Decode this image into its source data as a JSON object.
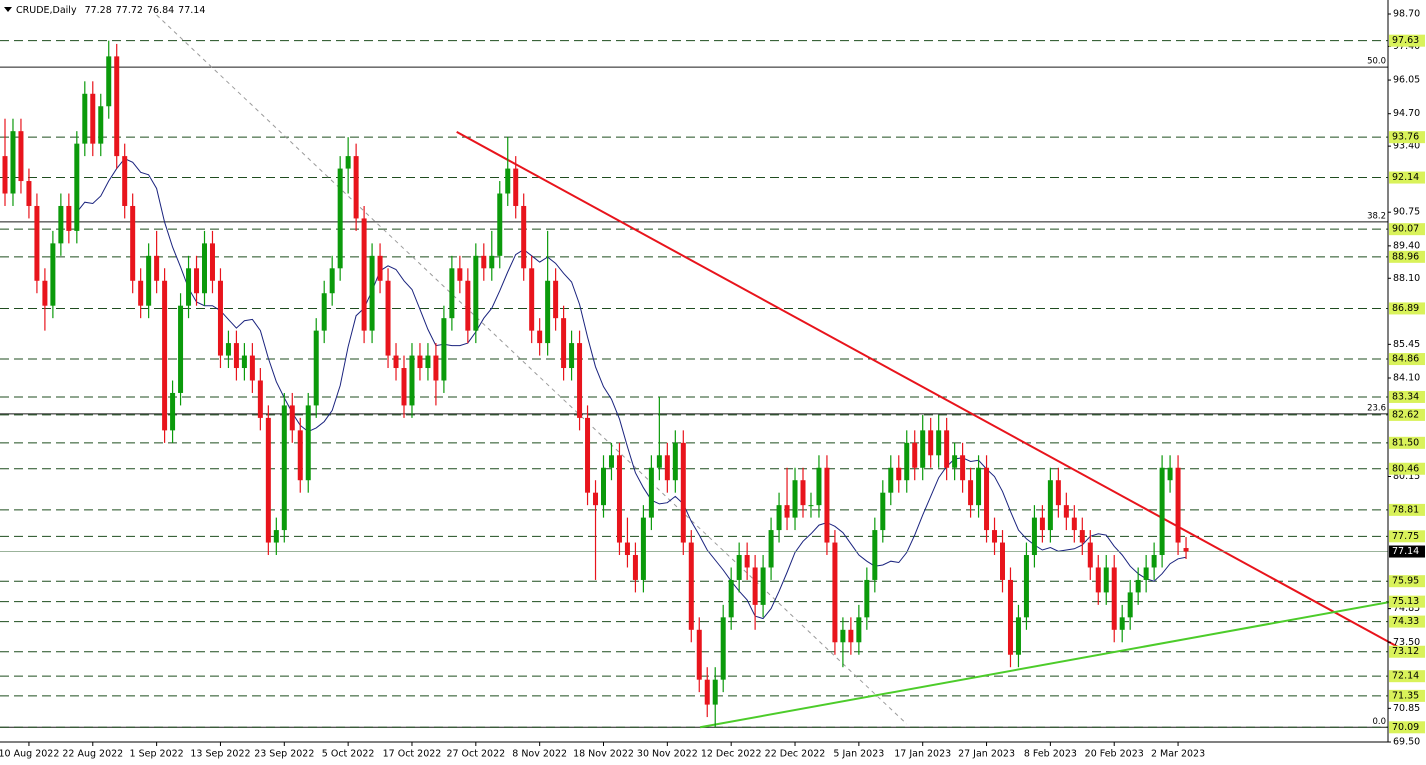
{
  "chart_data": {
    "type": "candlestick",
    "symbol": "CRUDE,Daily",
    "up_color": "#0b9a0b",
    "down_color": "#e8141c",
    "ylim": [
      69.5,
      98.7
    ],
    "yticks": [
      {
        "value": 98.7,
        "label": "98.70"
      },
      {
        "value": 97.4,
        "label": "97.40"
      },
      96.05,
      {
        "value": 94.7,
        "label": "94.70"
      },
      {
        "value": 93.4,
        "label": "93.40"
      },
      90.75,
      {
        "value": 89.4,
        "label": "89.40"
      },
      {
        "value": 88.1,
        "label": "88.10"
      },
      85.45,
      {
        "value": 84.1,
        "label": "84.10"
      },
      80.15,
      74.85,
      {
        "value": 73.5,
        "label": "73.50"
      },
      70.85,
      {
        "value": 69.5,
        "label": "69.50"
      }
    ],
    "xticks": [
      {
        "value": 3,
        "label": "10 Aug 2022"
      },
      {
        "value": 11,
        "label": "22 Aug 2022"
      },
      {
        "value": 19,
        "label": "1 Sep 2022"
      },
      {
        "value": 27,
        "label": "13 Sep 2022"
      },
      {
        "value": 35,
        "label": "23 Sep 2022"
      },
      {
        "value": 43,
        "label": "5 Oct 2022"
      },
      {
        "value": 51,
        "label": "17 Oct 2022"
      },
      {
        "value": 59,
        "label": "27 Oct 2022"
      },
      {
        "value": 67,
        "label": "8 Nov 2022"
      },
      {
        "value": 75,
        "label": "18 Nov 2022"
      },
      {
        "value": 83,
        "label": "30 Nov 2022"
      },
      {
        "value": 91,
        "label": "12 Dec 2022"
      },
      {
        "value": 99,
        "label": "22 Dec 2022"
      },
      {
        "value": 107,
        "label": "5 Jan 2023"
      },
      {
        "value": 115,
        "label": "17 Jan 2023"
      },
      {
        "value": 123,
        "label": "27 Jan 2023"
      },
      {
        "value": 131,
        "label": "8 Feb 2023"
      },
      {
        "value": 139,
        "label": "20 Feb 2023"
      },
      {
        "value": 147,
        "label": "2 Mar 2023"
      }
    ],
    "levels": [
      97.63,
      93.76,
      92.14,
      90.07,
      88.96,
      86.89,
      84.86,
      83.34,
      82.62,
      {
        "value": 81.5,
        "label": "81.50"
      },
      80.46,
      78.81,
      77.75,
      75.95,
      75.13,
      74.33,
      73.12,
      72.14,
      71.35,
      70.09
    ],
    "fib_levels": [
      {
        "label": "50.0",
        "price": 96.57
      },
      {
        "label": "38.2",
        "price": 90.36
      },
      {
        "label": "23.6",
        "price": 82.66
      },
      {
        "label": "0.0",
        "price": 70.09
      }
    ],
    "ma_period": 10,
    "trendlines": [
      {
        "color": "#e8141c",
        "x": [
          56.6,
          174.8
        ],
        "y": [
          93.97,
          73.27
        ]
      },
      {
        "color": "#4ccc2a",
        "x": [
          87.1,
          174.8
        ],
        "y": [
          70.09,
          75.19
        ]
      },
      {
        "color": "#9a9a9a",
        "x": [
          19,
          113
        ],
        "y": [
          98.66,
          70.22
        ],
        "dashed": true
      }
    ],
    "ohlc": [
      [
        93.0,
        94.5,
        91.0,
        91.5
      ],
      [
        91.5,
        94.5,
        91.0,
        94.0
      ],
      [
        94.0,
        94.5,
        91.5,
        92.0
      ],
      [
        92.0,
        92.5,
        90.5,
        91.0
      ],
      [
        91.0,
        91.5,
        87.5,
        88.0
      ],
      [
        88.0,
        88.5,
        86.0,
        87.0
      ],
      [
        87.0,
        90.0,
        86.5,
        89.5
      ],
      [
        89.5,
        91.5,
        89.0,
        91.0
      ],
      [
        91.0,
        91.5,
        89.5,
        90.0
      ],
      [
        90.0,
        94.0,
        89.5,
        93.5
      ],
      [
        93.5,
        96.0,
        93.0,
        95.5
      ],
      [
        95.5,
        96.0,
        93.0,
        93.5
      ],
      [
        93.5,
        95.5,
        93.0,
        95.0
      ],
      [
        95.0,
        97.63,
        94.5,
        97.0
      ],
      [
        97.0,
        97.5,
        92.5,
        93.0
      ],
      [
        93.0,
        93.5,
        90.5,
        91.0
      ],
      [
        91.0,
        91.5,
        87.5,
        88.0
      ],
      [
        88.0,
        88.5,
        86.5,
        87.0
      ],
      [
        87.0,
        89.5,
        86.5,
        89.0
      ],
      [
        89.0,
        90.0,
        87.5,
        88.0
      ],
      [
        88.0,
        88.5,
        81.5,
        82.0
      ],
      [
        82.0,
        84.0,
        81.5,
        83.5
      ],
      [
        83.5,
        87.5,
        83.0,
        87.0
      ],
      [
        87.0,
        89.0,
        86.5,
        88.5
      ],
      [
        88.5,
        89.0,
        87.0,
        87.5
      ],
      [
        87.5,
        90.0,
        87.0,
        89.5
      ],
      [
        89.5,
        90.0,
        87.5,
        88.0
      ],
      [
        88.0,
        88.5,
        84.5,
        85.0
      ],
      [
        85.0,
        86.0,
        84.5,
        85.5
      ],
      [
        85.5,
        86.0,
        84.0,
        84.5
      ],
      [
        84.5,
        85.5,
        84.0,
        85.0
      ],
      [
        85.0,
        85.5,
        83.5,
        84.0
      ],
      [
        84.0,
        84.5,
        82.0,
        82.5
      ],
      [
        82.5,
        83.0,
        77.0,
        77.5
      ],
      [
        77.5,
        78.5,
        77.0,
        78.0
      ],
      [
        78.0,
        83.5,
        77.5,
        83.0
      ],
      [
        83.0,
        83.5,
        81.5,
        82.0
      ],
      [
        82.0,
        82.5,
        79.5,
        80.0
      ],
      [
        80.0,
        83.5,
        79.5,
        83.0
      ],
      [
        83.0,
        86.5,
        82.5,
        86.0
      ],
      [
        86.0,
        88.0,
        85.5,
        87.5
      ],
      [
        87.5,
        89.0,
        87.0,
        88.5
      ],
      [
        88.5,
        93.0,
        88.0,
        92.5
      ],
      [
        92.5,
        93.76,
        91.5,
        93.0
      ],
      [
        93.0,
        93.5,
        90.0,
        90.5
      ],
      [
        90.5,
        91.0,
        85.5,
        86.0
      ],
      [
        86.0,
        89.5,
        85.5,
        89.0
      ],
      [
        89.0,
        89.5,
        87.5,
        88.0
      ],
      [
        88.0,
        88.5,
        84.5,
        85.0
      ],
      [
        85.0,
        85.5,
        84.0,
        84.5
      ],
      [
        84.5,
        85.0,
        82.5,
        83.0
      ],
      [
        83.0,
        85.5,
        82.5,
        85.0
      ],
      [
        85.0,
        85.5,
        84.0,
        84.5
      ],
      [
        84.5,
        85.5,
        84.0,
        85.0
      ],
      [
        85.0,
        85.5,
        83.0,
        84.0
      ],
      [
        84.0,
        87.0,
        83.5,
        86.5
      ],
      [
        86.5,
        89.0,
        86.0,
        88.5
      ],
      [
        88.5,
        89.0,
        87.5,
        88.0
      ],
      [
        88.0,
        88.5,
        85.5,
        86.0
      ],
      [
        86.0,
        89.5,
        85.5,
        89.0
      ],
      [
        89.0,
        89.5,
        88.0,
        88.5
      ],
      [
        88.5,
        90.0,
        88.0,
        89.0
      ],
      [
        89.0,
        92.0,
        88.5,
        91.5
      ],
      [
        91.5,
        93.76,
        91.0,
        92.5
      ],
      [
        92.5,
        93.0,
        90.5,
        91.0
      ],
      [
        91.0,
        91.5,
        88.0,
        88.5
      ],
      [
        88.5,
        89.0,
        85.5,
        86.0
      ],
      [
        86.0,
        86.5,
        85.0,
        85.5
      ],
      [
        85.5,
        90.0,
        85.0,
        88.0
      ],
      [
        88.0,
        88.5,
        86.0,
        86.5
      ],
      [
        86.5,
        87.0,
        84.0,
        84.5
      ],
      [
        84.5,
        86.0,
        84.0,
        85.5
      ],
      [
        85.5,
        86.0,
        82.0,
        82.5
      ],
      [
        82.5,
        83.0,
        79.0,
        79.5
      ],
      [
        79.5,
        80.0,
        76.0,
        79.0
      ],
      [
        79.0,
        81.0,
        78.5,
        80.5
      ],
      [
        80.5,
        81.5,
        80.0,
        81.0
      ],
      [
        81.0,
        81.5,
        77.0,
        77.5
      ],
      [
        77.5,
        78.5,
        76.5,
        77.0
      ],
      [
        77.0,
        77.5,
        75.5,
        76.0
      ],
      [
        76.0,
        79.0,
        75.5,
        78.5
      ],
      [
        78.5,
        81.0,
        78.0,
        80.5
      ],
      [
        80.5,
        83.34,
        80.0,
        81.0
      ],
      [
        81.0,
        81.5,
        79.5,
        80.0
      ],
      [
        80.0,
        82.0,
        79.5,
        81.5
      ],
      [
        81.5,
        82.0,
        77.0,
        77.5
      ],
      [
        77.5,
        78.0,
        73.5,
        74.0
      ],
      [
        74.0,
        74.5,
        71.5,
        72.0
      ],
      [
        72.0,
        72.5,
        70.5,
        71.0
      ],
      [
        71.0,
        72.5,
        70.09,
        72.0
      ],
      [
        72.0,
        75.0,
        71.5,
        74.5
      ],
      [
        74.5,
        76.5,
        74.0,
        76.0
      ],
      [
        76.0,
        77.5,
        75.5,
        77.0
      ],
      [
        77.0,
        77.5,
        76.0,
        76.5
      ],
      [
        76.5,
        77.0,
        74.0,
        75.0
      ],
      [
        75.0,
        77.0,
        74.5,
        76.5
      ],
      [
        76.5,
        78.5,
        76.0,
        78.0
      ],
      [
        78.0,
        79.5,
        77.5,
        79.0
      ],
      [
        79.0,
        80.5,
        78.0,
        78.5
      ],
      [
        78.5,
        80.5,
        78.0,
        80.0
      ],
      [
        80.0,
        80.5,
        78.5,
        79.0
      ],
      [
        79.0,
        79.5,
        78.5,
        79.0
      ],
      [
        79.0,
        81.0,
        78.5,
        80.5
      ],
      [
        80.5,
        81.0,
        77.0,
        77.5
      ],
      [
        77.5,
        78.0,
        73.0,
        73.5
      ],
      [
        73.5,
        74.5,
        72.5,
        74.0
      ],
      [
        74.0,
        74.5,
        73.0,
        73.5
      ],
      [
        73.5,
        75.0,
        73.0,
        74.5
      ],
      [
        74.5,
        76.5,
        74.0,
        76.0
      ],
      [
        76.0,
        78.5,
        75.5,
        78.0
      ],
      [
        78.0,
        80.0,
        77.5,
        79.5
      ],
      [
        79.5,
        81.0,
        79.0,
        80.5
      ],
      [
        80.5,
        81.0,
        79.5,
        80.0
      ],
      [
        80.0,
        82.0,
        79.5,
        81.5
      ],
      [
        81.5,
        82.0,
        80.0,
        80.5
      ],
      [
        80.5,
        82.62,
        80.0,
        82.0
      ],
      [
        82.0,
        82.5,
        80.5,
        81.0
      ],
      [
        81.0,
        82.62,
        80.5,
        82.0
      ],
      [
        82.0,
        82.5,
        80.0,
        80.5
      ],
      [
        80.5,
        81.5,
        80.0,
        81.0
      ],
      [
        81.0,
        81.5,
        79.5,
        80.0
      ],
      [
        80.0,
        80.5,
        78.5,
        79.0
      ],
      [
        79.0,
        81.0,
        78.5,
        80.5
      ],
      [
        80.5,
        81.0,
        77.5,
        78.0
      ],
      [
        78.0,
        78.5,
        77.0,
        77.5
      ],
      [
        77.5,
        78.0,
        75.5,
        76.0
      ],
      [
        76.0,
        76.5,
        72.5,
        73.0
      ],
      [
        73.0,
        75.0,
        72.5,
        74.5
      ],
      [
        74.5,
        77.5,
        74.0,
        77.0
      ],
      [
        77.0,
        79.0,
        76.5,
        78.5
      ],
      [
        78.5,
        79.0,
        77.5,
        78.0
      ],
      [
        78.0,
        80.5,
        77.5,
        80.0
      ],
      [
        80.0,
        80.5,
        78.5,
        79.0
      ],
      [
        79.0,
        79.5,
        78.0,
        78.5
      ],
      [
        78.5,
        79.0,
        77.5,
        78.0
      ],
      [
        78.0,
        78.5,
        77.0,
        77.5
      ],
      [
        77.5,
        78.0,
        76.0,
        76.5
      ],
      [
        76.5,
        77.0,
        75.0,
        75.5
      ],
      [
        75.5,
        77.0,
        75.0,
        76.5
      ],
      [
        76.5,
        77.0,
        73.5,
        74.0
      ],
      [
        74.0,
        75.0,
        73.5,
        74.5
      ],
      [
        74.5,
        76.0,
        74.0,
        75.5
      ],
      [
        75.5,
        76.5,
        75.0,
        76.0
      ],
      [
        76.0,
        77.0,
        75.5,
        76.5
      ],
      [
        76.5,
        77.5,
        76.0,
        77.0
      ],
      [
        77.0,
        81.0,
        76.5,
        80.5
      ],
      [
        80.0,
        81.0,
        79.5,
        80.5
      ],
      [
        80.5,
        81.0,
        77.0,
        77.5
      ],
      [
        77.28,
        77.72,
        76.84,
        77.14
      ]
    ]
  }
}
